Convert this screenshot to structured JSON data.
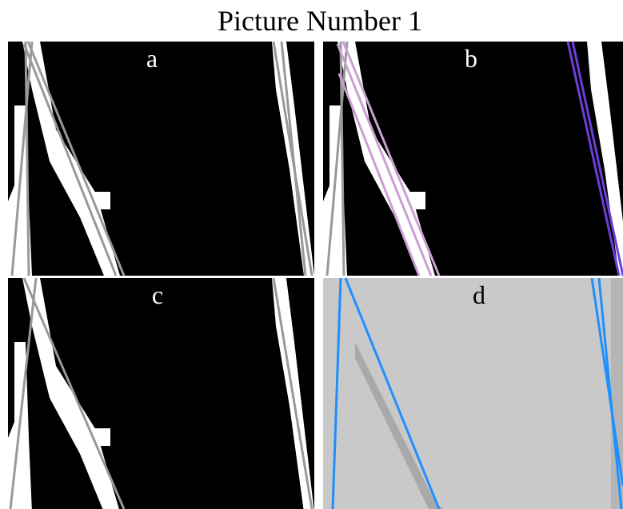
{
  "title": "Picture Number 1",
  "panels": [
    {
      "label": "a"
    },
    {
      "label": "b"
    },
    {
      "label": "c"
    },
    {
      "label": "d"
    }
  ]
}
